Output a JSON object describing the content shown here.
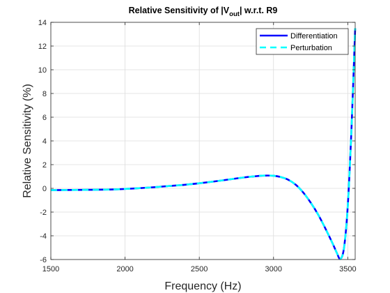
{
  "chart_data": {
    "type": "line",
    "title": {
      "prefix": "Relative Sensitivity of |V",
      "subscript": "out",
      "suffix": "| w.r.t. R9"
    },
    "xlabel": "Frequency (Hz)",
    "ylabel": "Relative Sensitivity (%)",
    "xlim": [
      1500,
      3550
    ],
    "ylim": [
      -6,
      14
    ],
    "xticks": [
      1500,
      2000,
      2500,
      3000,
      3500
    ],
    "yticks": [
      -6,
      -4,
      -2,
      0,
      2,
      4,
      6,
      8,
      10,
      12,
      14
    ],
    "grid": true,
    "legend_position": "top-right",
    "series": [
      {
        "name": "Differentiation",
        "color": "#0000ff",
        "style": "solid",
        "x": [
          1500,
          1700,
          1900,
          2000,
          2100,
          2200,
          2300,
          2400,
          2500,
          2600,
          2700,
          2800,
          2900,
          2950,
          3000,
          3050,
          3100,
          3150,
          3200,
          3250,
          3300,
          3350,
          3400,
          3425,
          3450,
          3475,
          3500,
          3525,
          3550
        ],
        "y": [
          -0.15,
          -0.13,
          -0.1,
          -0.05,
          0.02,
          0.1,
          0.2,
          0.3,
          0.43,
          0.58,
          0.75,
          0.92,
          1.05,
          1.08,
          1.06,
          0.95,
          0.72,
          0.3,
          -0.35,
          -1.2,
          -2.2,
          -3.4,
          -4.7,
          -5.4,
          -5.95,
          -5.0,
          -1.5,
          5.0,
          13.5
        ]
      },
      {
        "name": "Perturbation",
        "color": "#00ffff",
        "style": "dashed",
        "x": [
          1500,
          1700,
          1900,
          2000,
          2100,
          2200,
          2300,
          2400,
          2500,
          2600,
          2700,
          2800,
          2900,
          2950,
          3000,
          3050,
          3100,
          3150,
          3200,
          3250,
          3300,
          3350,
          3400,
          3425,
          3450,
          3475,
          3500,
          3525,
          3550
        ],
        "y": [
          -0.15,
          -0.13,
          -0.1,
          -0.05,
          0.02,
          0.1,
          0.2,
          0.3,
          0.43,
          0.58,
          0.75,
          0.92,
          1.05,
          1.08,
          1.06,
          0.95,
          0.72,
          0.3,
          -0.35,
          -1.2,
          -2.2,
          -3.4,
          -4.7,
          -5.4,
          -5.95,
          -5.0,
          -1.5,
          5.0,
          13.5
        ]
      }
    ]
  }
}
